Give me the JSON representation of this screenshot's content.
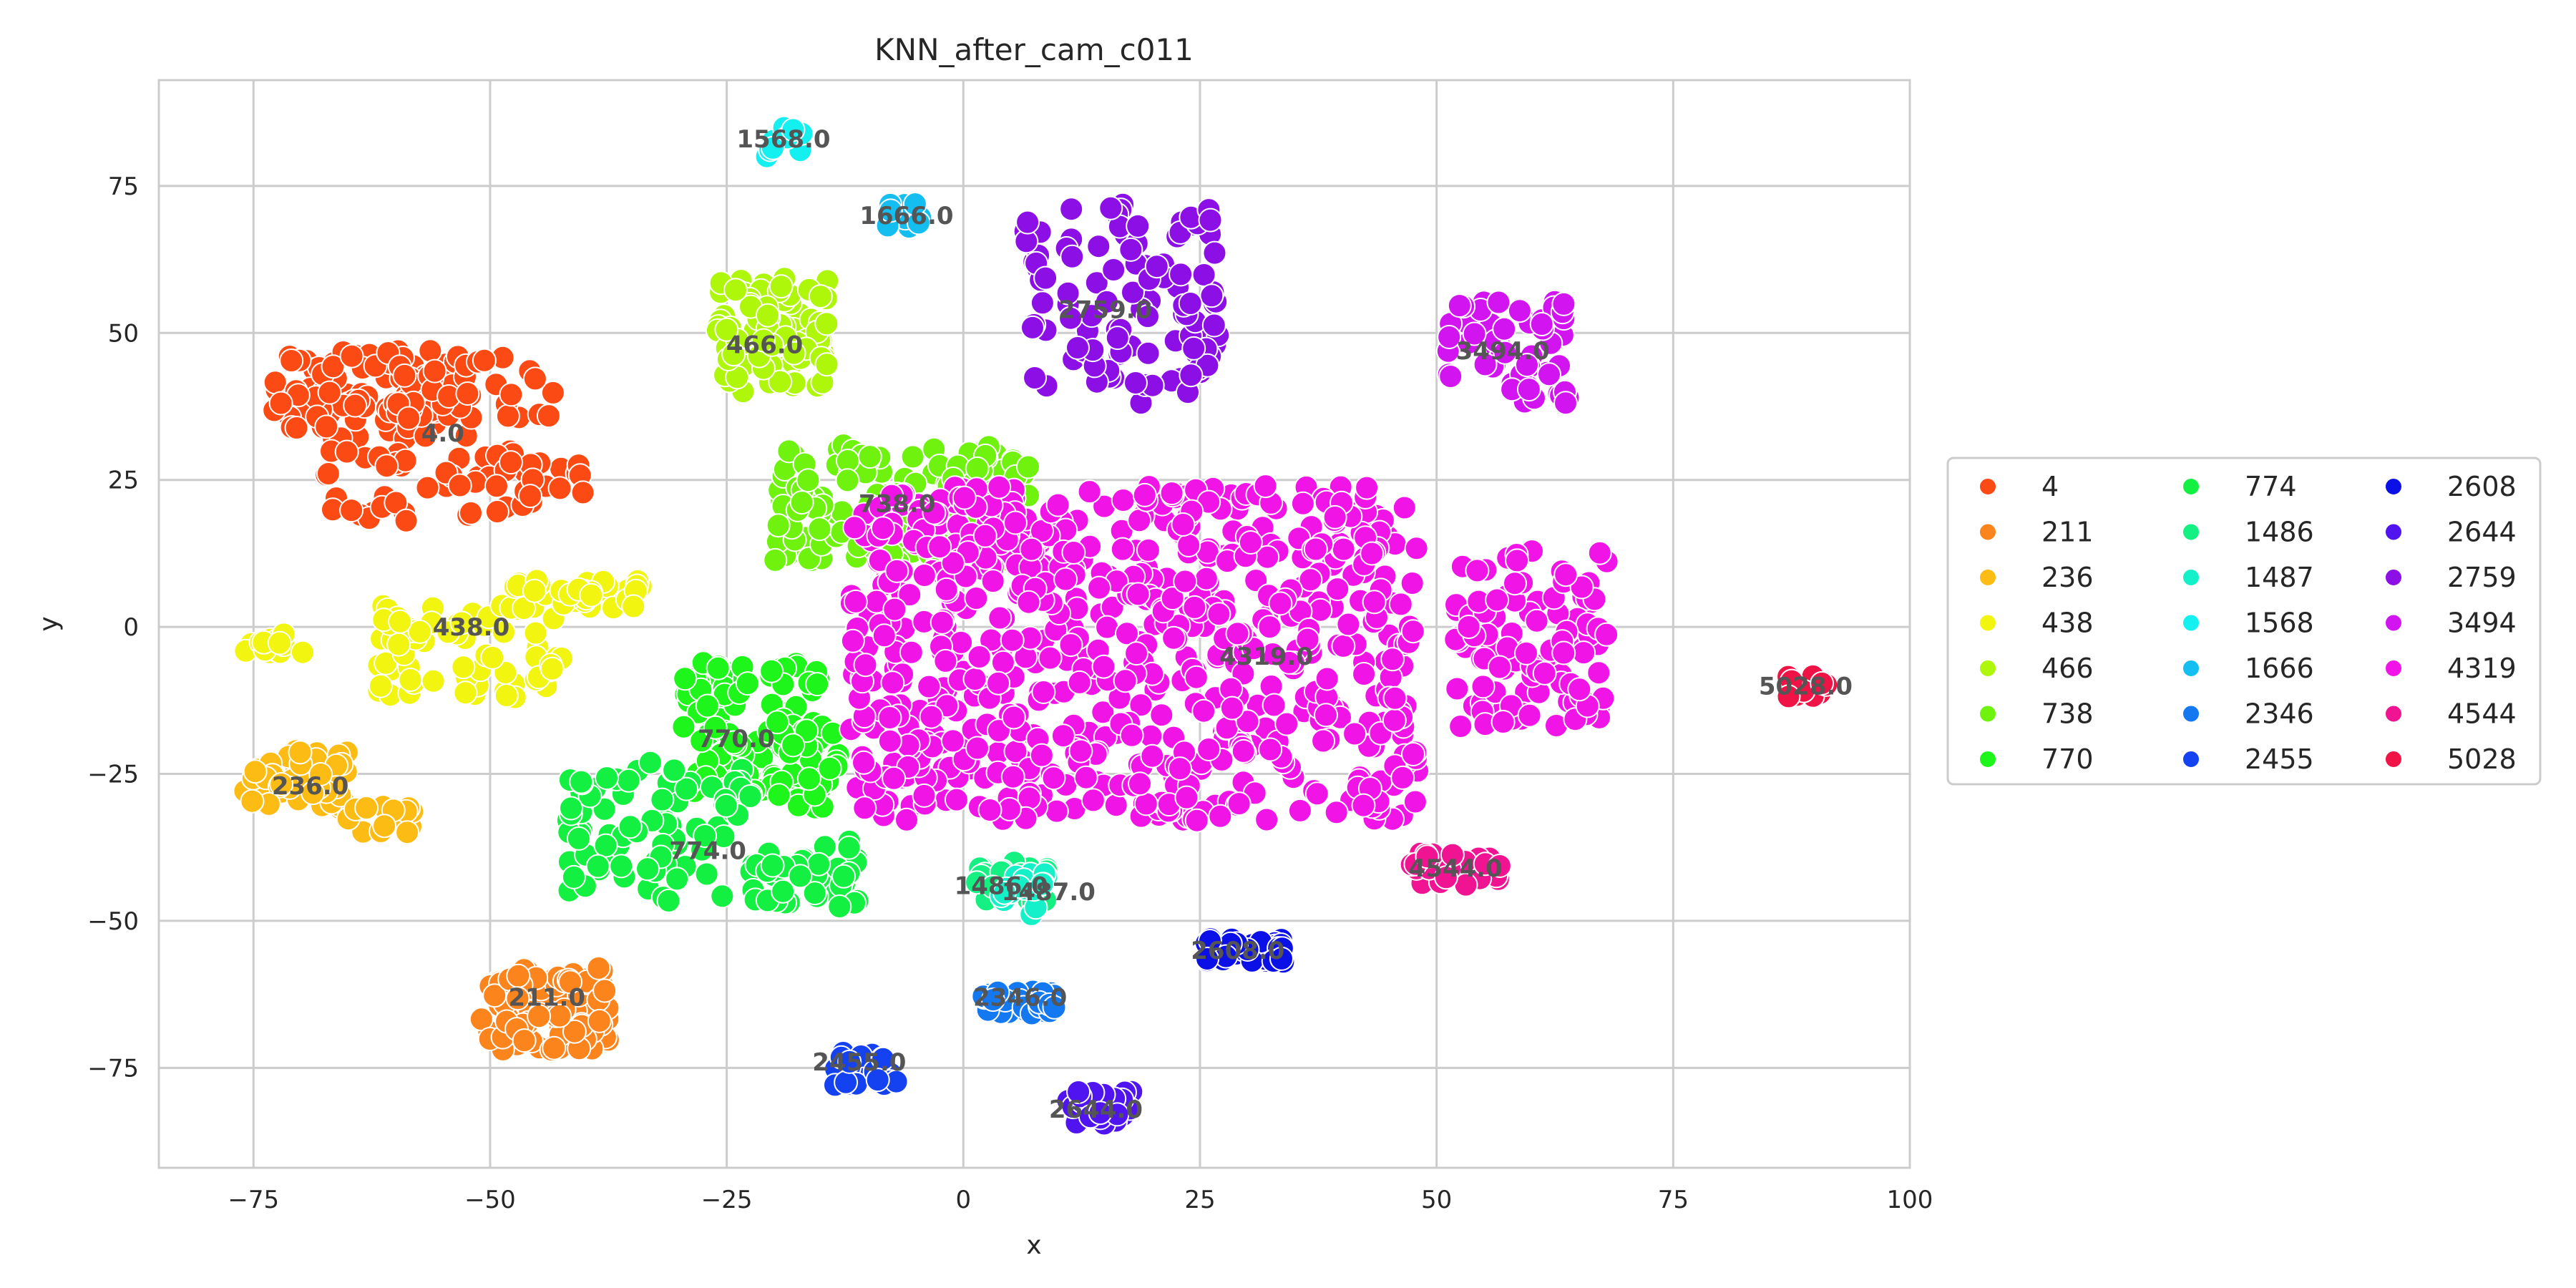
{
  "chart_data": {
    "type": "scatter",
    "title": "KNN_after_cam_c011",
    "xlabel": "x",
    "ylabel": "y",
    "xlim": [
      -85,
      100
    ],
    "ylim": [
      -92,
      93
    ],
    "xticks": [
      -75,
      -50,
      -25,
      0,
      25,
      50,
      75,
      100
    ],
    "yticks": [
      -75,
      -50,
      -25,
      0,
      25,
      50,
      75
    ],
    "grid": true,
    "legend_position": "right",
    "marker_edge": "#ffffff",
    "series": [
      {
        "name": "4",
        "color": "#fc4a14",
        "label": "4.0",
        "label_pos": [
          -55,
          33
        ],
        "clusters": [
          {
            "x": [
              -73,
              -52
            ],
            "y": [
              32,
              47
            ],
            "n": 110
          },
          {
            "x": [
              -68,
              -40
            ],
            "y": [
              18,
              30
            ],
            "n": 60
          },
          {
            "x": [
              -60,
              -42
            ],
            "y": [
              35,
              46
            ],
            "n": 30
          }
        ]
      },
      {
        "name": "211",
        "color": "#fc841c",
        "label": "211.0",
        "label_pos": [
          -44,
          -63
        ],
        "clusters": [
          {
            "x": [
              -51,
              -37
            ],
            "y": [
              -72,
              -58
            ],
            "n": 90
          }
        ]
      },
      {
        "name": "236",
        "color": "#fcbc14",
        "label": "236.0",
        "label_pos": [
          -69,
          -27
        ],
        "clusters": [
          {
            "x": [
              -76,
              -65
            ],
            "y": [
              -31,
              -21
            ],
            "n": 50
          },
          {
            "x": [
              -65,
              -58
            ],
            "y": [
              -35,
              -30
            ],
            "n": 15
          }
        ]
      },
      {
        "name": "438",
        "color": "#f1f50f",
        "label": "438.0",
        "label_pos": [
          -52,
          0
        ],
        "clusters": [
          {
            "x": [
              -76,
              -69
            ],
            "y": [
              -5,
              -1
            ],
            "n": 14
          },
          {
            "x": [
              -62,
              -42
            ],
            "y": [
              -12,
              5
            ],
            "n": 70
          },
          {
            "x": [
              -48,
              -34
            ],
            "y": [
              3,
              8
            ],
            "n": 40
          }
        ]
      },
      {
        "name": "466",
        "color": "#aef60a",
        "label": "466.0",
        "label_pos": [
          -21,
          48
        ],
        "clusters": [
          {
            "x": [
              -26,
              -14
            ],
            "y": [
              40,
              60
            ],
            "n": 90
          }
        ]
      },
      {
        "name": "738",
        "color": "#6ef20e",
        "label": "738.0",
        "label_pos": [
          -7,
          21
        ],
        "clusters": [
          {
            "x": [
              -20,
              7
            ],
            "y": [
              11,
              31
            ],
            "n": 170
          }
        ]
      },
      {
        "name": "770",
        "color": "#1ef51a",
        "label": "770.0",
        "label_pos": [
          -24,
          -19
        ],
        "clusters": [
          {
            "x": [
              -30,
              -15
            ],
            "y": [
              -28,
              -6
            ],
            "n": 110
          },
          {
            "x": [
              -20,
              -13
            ],
            "y": [
              -31,
              -16
            ],
            "n": 35
          }
        ]
      },
      {
        "name": "774",
        "color": "#14f041",
        "label": "774.0",
        "label_pos": [
          -27,
          -38
        ],
        "clusters": [
          {
            "x": [
              -42,
              -22
            ],
            "y": [
              -47,
              -23
            ],
            "n": 90
          },
          {
            "x": [
              -22,
              -10
            ],
            "y": [
              -48,
              -36
            ],
            "n": 40
          }
        ]
      },
      {
        "name": "1486",
        "color": "#14f082",
        "label": "1486.0",
        "label_pos": [
          4,
          -44
        ],
        "clusters": [
          {
            "x": [
              1,
              9
            ],
            "y": [
              -47,
              -40
            ],
            "n": 25
          }
        ]
      },
      {
        "name": "1487",
        "color": "#14f0c8",
        "label": "1487.0",
        "label_pos": [
          9,
          -45
        ],
        "clusters": [
          {
            "x": [
              4,
              10
            ],
            "y": [
              -49,
              -42
            ],
            "n": 18
          }
        ]
      },
      {
        "name": "1568",
        "color": "#14f0f0",
        "label": "1568.0",
        "label_pos": [
          -19,
          83
        ],
        "clusters": [
          {
            "x": [
              -21,
              -17
            ],
            "y": [
              80,
              85
            ],
            "n": 12
          }
        ]
      },
      {
        "name": "1666",
        "color": "#14bef0",
        "label": "1666.0",
        "label_pos": [
          -6,
          70
        ],
        "clusters": [
          {
            "x": [
              -8,
              -4
            ],
            "y": [
              68,
              72
            ],
            "n": 10
          }
        ]
      },
      {
        "name": "2346",
        "color": "#1479f0",
        "label": "2346.0",
        "label_pos": [
          6,
          -63
        ],
        "clusters": [
          {
            "x": [
              2,
              10
            ],
            "y": [
              -66,
              -62
            ],
            "n": 30
          }
        ]
      },
      {
        "name": "2455",
        "color": "#1442f0",
        "label": "2455.0",
        "label_pos": [
          -11,
          -74
        ],
        "clusters": [
          {
            "x": [
              -14,
              -7
            ],
            "y": [
              -78,
              -72
            ],
            "n": 25
          }
        ]
      },
      {
        "name": "2608",
        "color": "#0a10e6",
        "label": "2608.0",
        "label_pos": [
          29,
          -55
        ],
        "clusters": [
          {
            "x": [
              25,
              34
            ],
            "y": [
              -57,
              -53
            ],
            "n": 35
          }
        ]
      },
      {
        "name": "2644",
        "color": "#5014f0",
        "label": "2644.0",
        "label_pos": [
          14,
          -82
        ],
        "clusters": [
          {
            "x": [
              11,
              18
            ],
            "y": [
              -85,
              -79
            ],
            "n": 25
          }
        ]
      },
      {
        "name": "2759",
        "color": "#8c0fe6",
        "label": "2759.0",
        "label_pos": [
          15,
          54
        ],
        "clusters": [
          {
            "x": [
              6,
              27
            ],
            "y": [
              38,
              72
            ],
            "n": 110
          }
        ]
      },
      {
        "name": "3494",
        "color": "#d214f0",
        "label": "3494.0",
        "label_pos": [
          57,
          47
        ],
        "clusters": [
          {
            "x": [
              51,
              64
            ],
            "y": [
              38,
              56
            ],
            "n": 60
          }
        ]
      },
      {
        "name": "4319",
        "color": "#f014e6",
        "label": "4319.0",
        "label_pos": [
          32,
          -5
        ],
        "clusters": [
          {
            "x": [
              -12,
              48
            ],
            "y": [
              -33,
              24
            ],
            "n": 700
          },
          {
            "x": [
              52,
              68
            ],
            "y": [
              -17,
              13
            ],
            "n": 110
          }
        ]
      },
      {
        "name": "4544",
        "color": "#f01492",
        "label": "4544.0",
        "label_pos": [
          52,
          -41
        ],
        "clusters": [
          {
            "x": [
              47,
              57
            ],
            "y": [
              -44,
              -38
            ],
            "n": 25
          }
        ]
      },
      {
        "name": "5028",
        "color": "#f01446",
        "label": "5028.0",
        "label_pos": [
          89,
          -10
        ],
        "clusters": [
          {
            "x": [
              87,
              92
            ],
            "y": [
              -13,
              -8
            ],
            "n": 14
          }
        ]
      }
    ]
  }
}
